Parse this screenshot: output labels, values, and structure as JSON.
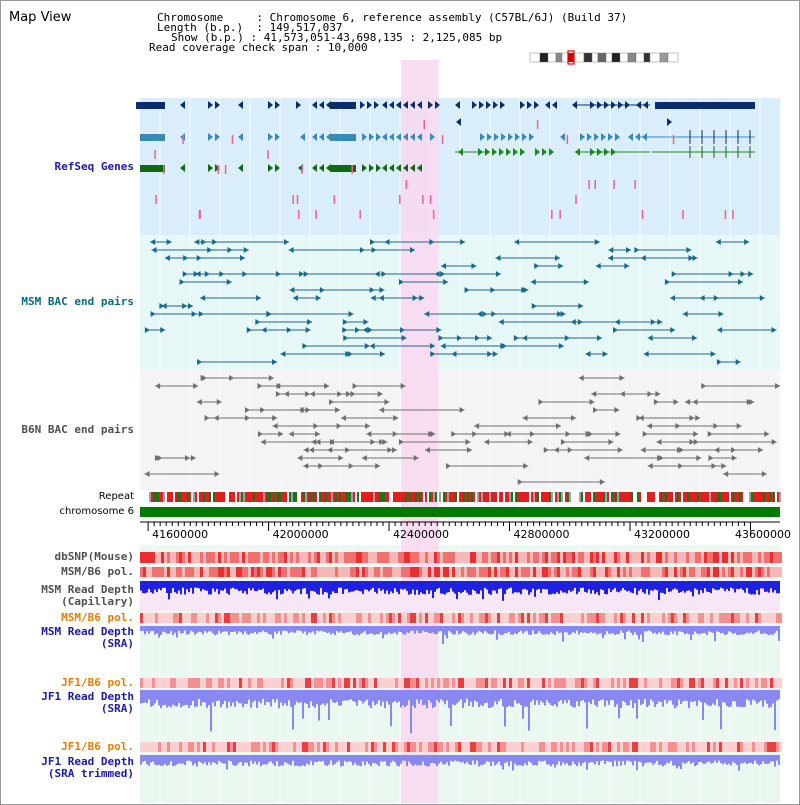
{
  "title": "Map View",
  "info": {
    "chromosome_label": "Chromosome",
    "chromosome_value": "Chromosome 6, reference assembly (C57BL/6J) (Build 37)",
    "length_label": "Length (b.p.)",
    "length_value": "149,517,037",
    "show_label": "Show (b.p.)",
    "show_value": "41,573,051-43,698,135 : 2,125,085 bp",
    "coverage_label": "Read coverage check span",
    "coverage_value": "10,000"
  },
  "tracks": {
    "refseq": "RefSeq Genes",
    "msm_bac": "MSM BAC end pairs",
    "b6n_bac": "B6N BAC end pairs",
    "repeat": "Repeat",
    "chromosome": "chromosome 6",
    "dbsnp": "dbSNP(Mouse)",
    "msm_b6_pol": "MSM/B6 pol.",
    "msm_read_cap_1": "MSM Read Depth",
    "msm_read_cap_2": "(Capillary)",
    "msm_b6_pol2": "MSM/B6 pol.",
    "msm_read_sra_1": "MSM Read Depth",
    "msm_read_sra_2": "(SRA)",
    "jf1_b6_pol": "JF1/B6 pol.",
    "jf1_read_sra_1": "JF1 Read Depth",
    "jf1_read_sra_2": "(SRA)",
    "jf1_b6_pol2": "JF1/B6 pol.",
    "jf1_read_trim_1": "JF1 Read Depth",
    "jf1_read_trim_2": "(SRA trimmed)"
  },
  "axis": {
    "ticks": [
      {
        "label": "41600000",
        "pos": 41600000
      },
      {
        "label": "42000000",
        "pos": 42000000
      },
      {
        "label": "42400000",
        "pos": 42400000
      },
      {
        "label": "42800000",
        "pos": 42800000
      },
      {
        "label": "43200000",
        "pos": 43200000
      },
      {
        "label": "43600000",
        "pos": 43600000
      }
    ],
    "range": [
      41573051,
      43698135
    ]
  },
  "highlight_range": [
    42440000,
    42565000
  ],
  "colors": {
    "refseq_bg": "#d9eefa",
    "msm_bg": "#e6f7f7",
    "b6n_bg": "#f4f4f7",
    "lower_bg": "#eaf8f0",
    "highlight": "#f8d8f0",
    "chromosome": "#007a00",
    "depth": "#2020e0",
    "depth_light": "#8888f0",
    "label_blue": "#1a1aa8",
    "label_teal": "#0a6a80",
    "label_orange": "#e08000",
    "label_gray": "#505050"
  }
}
